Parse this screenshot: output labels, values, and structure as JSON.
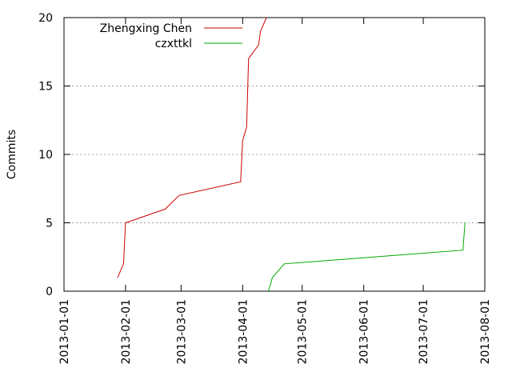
{
  "chart_data": {
    "type": "line",
    "title": "",
    "xlabel": "",
    "ylabel": "Commits",
    "x_type": "date",
    "xlim": [
      "2013-01-01",
      "2013-08-01"
    ],
    "ylim": [
      0,
      20
    ],
    "x_ticks": [
      "2013-01-01",
      "2013-02-01",
      "2013-03-01",
      "2013-04-01",
      "2013-05-01",
      "2013-06-01",
      "2013-07-01",
      "2013-08-01"
    ],
    "y_ticks": [
      0,
      5,
      10,
      15,
      20
    ],
    "grid": "horizontal dotted",
    "legend_position": "top-left",
    "series": [
      {
        "name": "Zhengxing Chen",
        "color": "#cc0000",
        "points": [
          [
            "2013-01-28",
            1
          ],
          [
            "2013-01-31",
            2
          ],
          [
            "2013-02-01",
            5
          ],
          [
            "2013-02-21",
            6
          ],
          [
            "2013-02-28",
            7
          ],
          [
            "2013-03-31",
            8
          ],
          [
            "2013-04-01",
            11
          ],
          [
            "2013-04-03",
            12
          ],
          [
            "2013-04-04",
            17
          ],
          [
            "2013-04-09",
            18
          ],
          [
            "2013-04-10",
            19
          ],
          [
            "2013-04-13",
            20
          ]
        ]
      },
      {
        "name": "czxttkl",
        "color": "#00aa00",
        "points": [
          [
            "2013-04-14",
            0
          ],
          [
            "2013-04-16",
            1
          ],
          [
            "2013-04-22",
            2
          ],
          [
            "2013-07-21",
            3
          ],
          [
            "2013-07-22",
            5
          ]
        ]
      }
    ]
  }
}
